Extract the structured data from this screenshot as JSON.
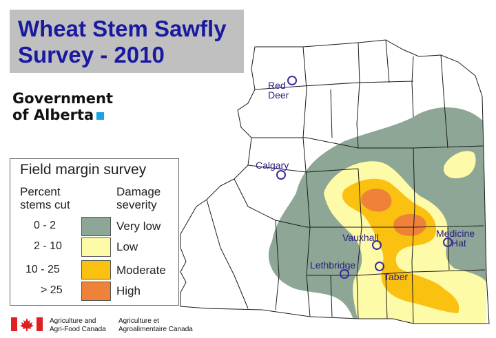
{
  "title": {
    "line1": "Wheat Stem Sawfly",
    "line2": "Survey - 2010"
  },
  "government": {
    "line1": "Government",
    "line2": "of Alberta",
    "square_color": "#1aa3e0"
  },
  "legend": {
    "title": "Field margin survey",
    "col1_header_1": "Percent",
    "col1_header_2": "stems cut",
    "col2_header_1": "Damage",
    "col2_header_2": "severity",
    "classes": [
      {
        "range": "0 -   2",
        "severity": "Very low",
        "color": "#8ea696"
      },
      {
        "range": "2 - 10",
        "severity": "Low",
        "color": "#fdfaa8"
      },
      {
        "range": "10 - 25",
        "severity": "Moderate",
        "color": "#fbc110"
      },
      {
        "range": "> 25",
        "severity": "High",
        "color": "#ee8238"
      }
    ]
  },
  "cities": [
    {
      "name_line1": "Red",
      "name_line2": "Deer"
    },
    {
      "name_line1": "Calgary",
      "name_line2": ""
    },
    {
      "name_line1": "Vauxhall",
      "name_line2": ""
    },
    {
      "name_line1": "Medicine",
      "name_line2": "Hat"
    },
    {
      "name_line1": "Lethbridge",
      "name_line2": ""
    },
    {
      "name_line1": "Taber",
      "name_line2": ""
    }
  ],
  "footer": {
    "en_line1": "Agriculture and",
    "en_line2": "Agri-Food Canada",
    "fr_line1": "Agriculture et",
    "fr_line2": "Agroalimentaire Canada",
    "flag_icon": "maple-leaf-icon",
    "flag_color": "#e02020"
  }
}
